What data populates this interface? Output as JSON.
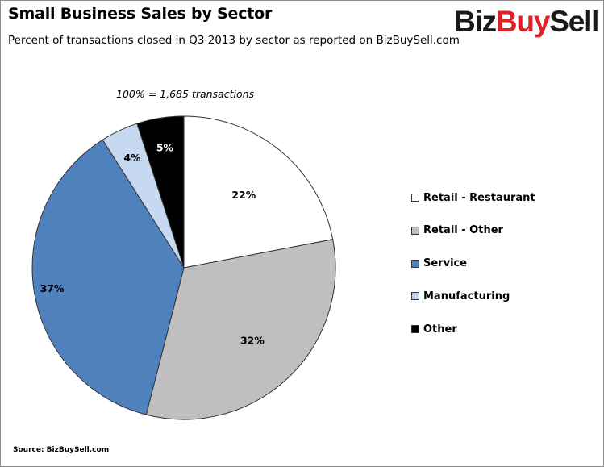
{
  "header": {
    "title": "Small Business Sales by Sector",
    "subtitle": "Percent of transactions closed in Q3 2013 by sector as reported  on BizBuySell.com"
  },
  "logo": {
    "part1": "Biz",
    "part2": "Buy",
    "part3": "Sell",
    "color_accent": "#e21f26",
    "color_dark": "#1a1a1a"
  },
  "note": "100% = 1,685 transactions",
  "footer": {
    "source": "Source: BizBuySell.com"
  },
  "chart_data": {
    "type": "pie",
    "title": "Small Business Sales by Sector",
    "subtitle": "Percent of transactions closed in Q3 2013 by sector as reported  on BizBuySell.com",
    "total_note": "100% = 1,685 transactions",
    "legend_position": "right",
    "slices": [
      {
        "name": "Retail - Restaurant",
        "value": 22,
        "label": "22%",
        "color": "#ffffff"
      },
      {
        "name": "Retail - Other",
        "value": 32,
        "label": "32%",
        "color": "#bfbfbf"
      },
      {
        "name": "Service",
        "value": 37,
        "label": "37%",
        "color": "#4f81bd"
      },
      {
        "name": "Manufacturing",
        "value": 4,
        "label": "4%",
        "color": "#c6d9f1"
      },
      {
        "name": "Other",
        "value": 5,
        "label": "5%",
        "color": "#000000"
      }
    ]
  }
}
